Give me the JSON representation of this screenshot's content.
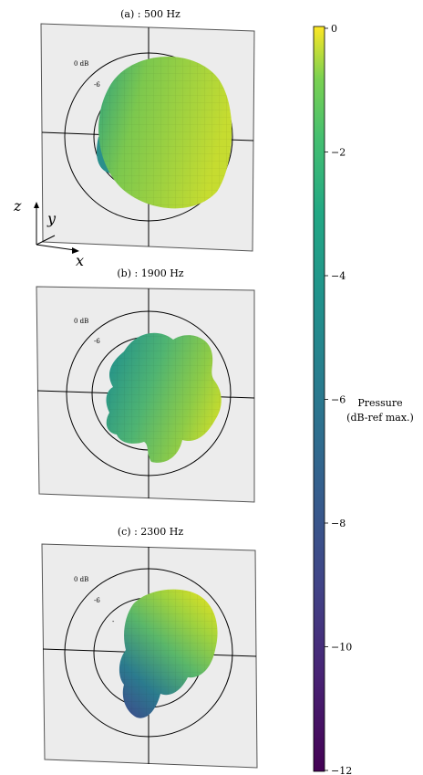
{
  "chart_data": {
    "type": "3d-polar-balloon",
    "panels": [
      {
        "title": "(a) : 500 Hz",
        "frequency_hz": 500,
        "ring_labels": [
          "0 dB",
          "-6"
        ]
      },
      {
        "title": "(b) : 1900 Hz",
        "frequency_hz": 1900,
        "ring_labels": [
          "0 dB",
          "-6"
        ]
      },
      {
        "title": "(c) : 2300 Hz",
        "frequency_hz": 2300,
        "ring_labels": [
          "0 dB",
          "-6",
          "-"
        ]
      }
    ],
    "axes": {
      "z": "z",
      "y": "y",
      "x": "x"
    },
    "colorbar": {
      "label_lines": [
        "Pressure",
        "(dB-ref max.)"
      ],
      "range": [
        -12,
        0
      ],
      "ticks": [
        0,
        -2,
        -4,
        -6,
        -8,
        -10,
        -12
      ],
      "tick_labels": [
        "0",
        "−2",
        "−4",
        "−6",
        "−8",
        "−10",
        "−12"
      ],
      "colormap": "viridis"
    }
  }
}
